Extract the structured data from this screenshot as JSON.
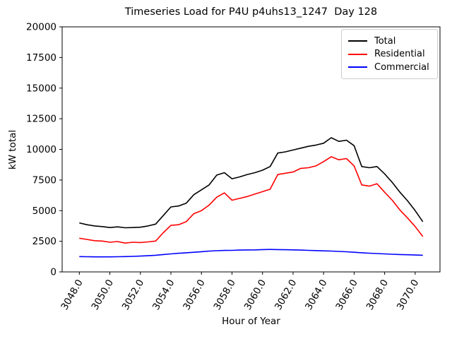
{
  "chart_data": {
    "type": "line",
    "title": "Timeseries Load for P4U p4uhs13_1247  Day 128",
    "xlabel": "Hour of Year",
    "ylabel": "kW total",
    "xlim": [
      3046.875,
      3071.625
    ],
    "ylim": [
      0,
      20000
    ],
    "grid": false,
    "legend_position": "upper right",
    "yticks": [
      0,
      2500,
      5000,
      7500,
      10000,
      12500,
      15000,
      17500,
      20000
    ],
    "ytick_labels": [
      "0",
      "2500",
      "5000",
      "7500",
      "10000",
      "12500",
      "15000",
      "17500",
      "20000"
    ],
    "xticks": [
      3048,
      3050,
      3052,
      3054,
      3056,
      3058,
      3060,
      3062,
      3064,
      3066,
      3068,
      3070
    ],
    "xtick_labels": [
      "3048.0",
      "3050.0",
      "3052.0",
      "3054.0",
      "3056.0",
      "3058.0",
      "3060.0",
      "3062.0",
      "3064.0",
      "3066.0",
      "3068.0",
      "3070.0"
    ],
    "x": [
      3048.0,
      3048.5,
      3049.0,
      3049.5,
      3050.0,
      3050.5,
      3051.0,
      3051.5,
      3052.0,
      3052.5,
      3053.0,
      3053.5,
      3054.0,
      3054.5,
      3055.0,
      3055.5,
      3056.0,
      3056.5,
      3057.0,
      3057.5,
      3058.0,
      3058.5,
      3059.0,
      3059.5,
      3060.0,
      3060.5,
      3061.0,
      3061.5,
      3062.0,
      3062.5,
      3063.0,
      3063.5,
      3064.0,
      3064.5,
      3065.0,
      3065.5,
      3066.0,
      3066.5,
      3067.0,
      3067.5,
      3068.0,
      3068.5,
      3069.0,
      3069.5,
      3070.0,
      3070.5
    ],
    "series": [
      {
        "name": "Total",
        "color": "#000000",
        "values": [
          4000,
          3850,
          3750,
          3700,
          3620,
          3680,
          3600,
          3620,
          3650,
          3750,
          3900,
          4600,
          5300,
          5380,
          5600,
          6300,
          6700,
          7100,
          7900,
          8100,
          7600,
          7750,
          7950,
          8100,
          8300,
          8600,
          9700,
          9800,
          9950,
          10100,
          10250,
          10350,
          10500,
          10950,
          10650,
          10750,
          10300,
          8600,
          8500,
          8600,
          8000,
          7300,
          6500,
          5800,
          5000,
          4100
        ]
      },
      {
        "name": "Residential",
        "color": "#ff0000",
        "values": [
          2750,
          2650,
          2550,
          2520,
          2420,
          2480,
          2350,
          2420,
          2400,
          2450,
          2520,
          3200,
          3800,
          3850,
          4100,
          4750,
          5000,
          5450,
          6100,
          6450,
          5850,
          6000,
          6150,
          6350,
          6550,
          6750,
          7950,
          8050,
          8150,
          8450,
          8500,
          8650,
          9000,
          9400,
          9150,
          9250,
          8650,
          7100,
          7000,
          7200,
          6500,
          5850,
          5050,
          4400,
          3700,
          2880
        ]
      },
      {
        "name": "Commercial",
        "color": "#0000ff",
        "values": [
          1250,
          1240,
          1230,
          1230,
          1230,
          1240,
          1250,
          1270,
          1290,
          1320,
          1360,
          1420,
          1470,
          1520,
          1560,
          1600,
          1650,
          1700,
          1730,
          1750,
          1760,
          1780,
          1790,
          1800,
          1820,
          1830,
          1820,
          1810,
          1800,
          1780,
          1760,
          1740,
          1720,
          1700,
          1670,
          1640,
          1600,
          1560,
          1530,
          1500,
          1470,
          1440,
          1420,
          1400,
          1380,
          1360
        ]
      }
    ]
  }
}
